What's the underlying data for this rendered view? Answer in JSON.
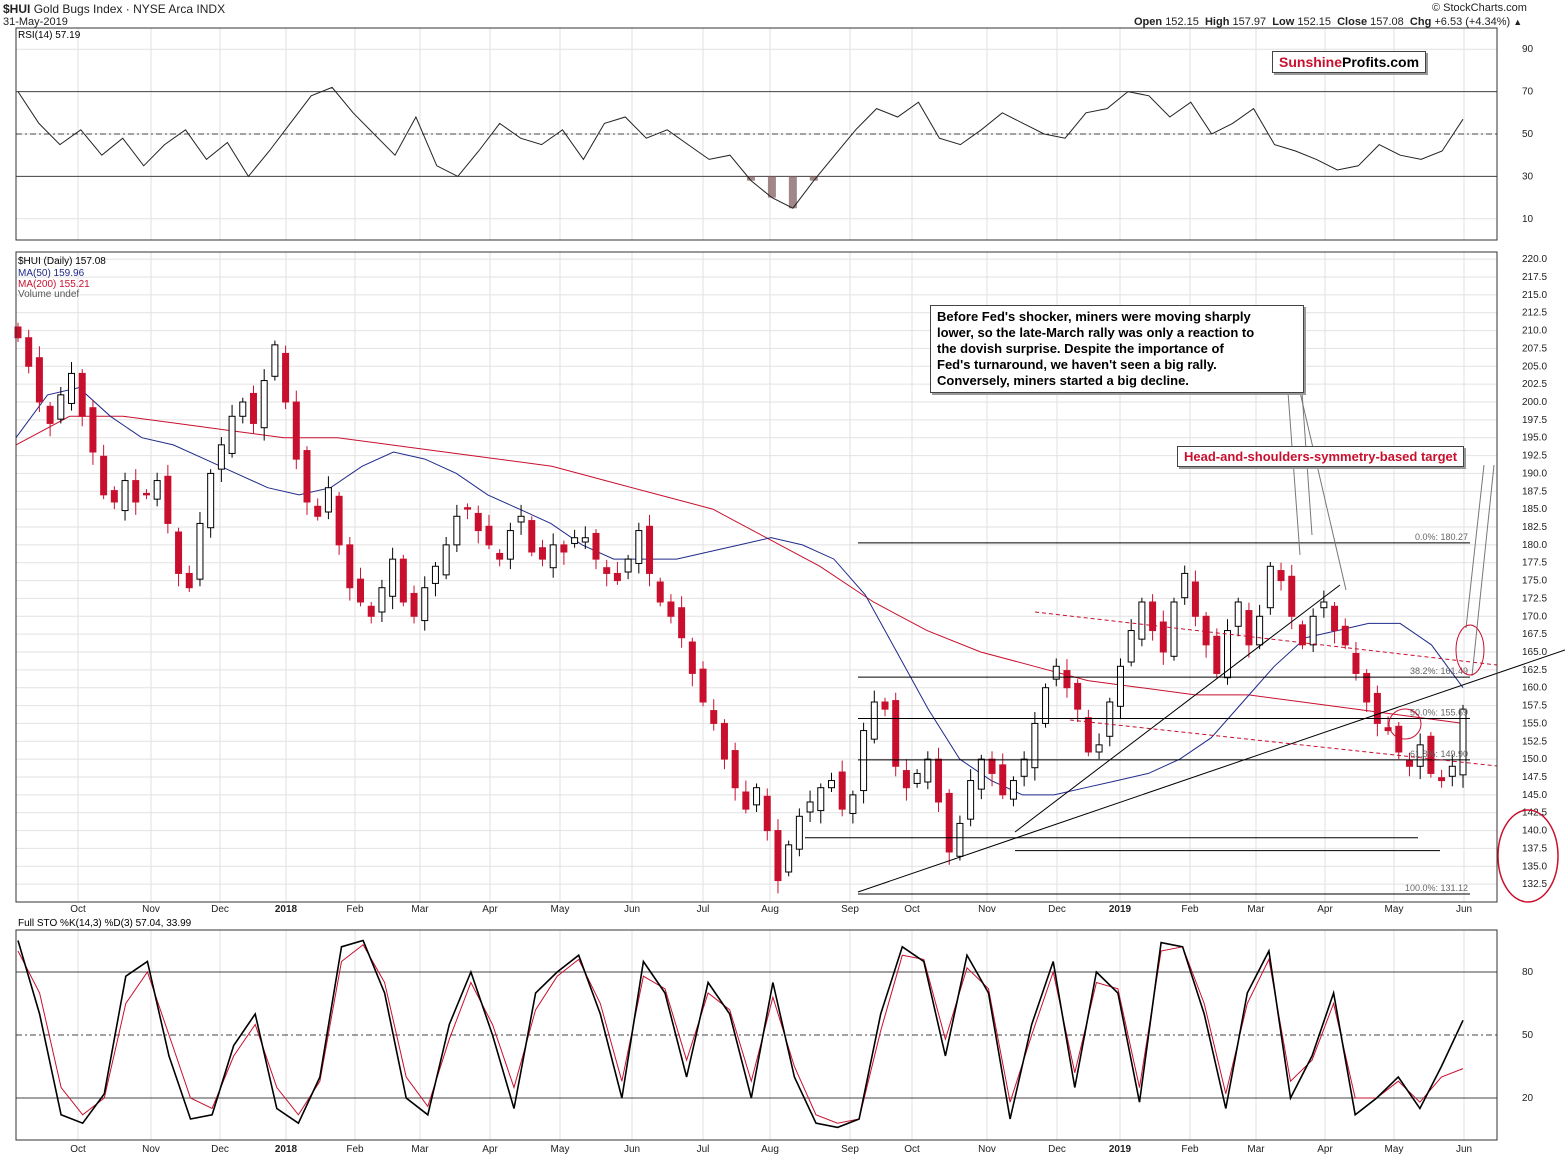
{
  "header": {
    "symbol": "$HUI",
    "name": "Gold Bugs Index · NYSE Arca INDX",
    "date": "31-May-2019",
    "copyright": "© StockCharts.com",
    "open_label": "Open",
    "open": "152.15",
    "high_label": "High",
    "high": "157.97",
    "low_label": "Low",
    "low": "152.15",
    "close_label": "Close",
    "close": "157.08",
    "chg_label": "Chg",
    "chg": "+6.53 (+4.34%)",
    "chg_arrow": "▲"
  },
  "legends": {
    "rsi": "RSI(14) 57.19",
    "price": "$HUI (Daily) 157.08",
    "ma50": "MA(50) 159.96",
    "ma200": "MA(200) 155.21",
    "volume": "Volume undef",
    "sto": "Full STO %K(14,3) %D(3) 57.04, 33.99"
  },
  "logo": {
    "part1": "Sunshine",
    "part2": "Profits.com"
  },
  "annotations": {
    "fed_note": "Before Fed's shocker, miners were moving sharply\nlower, so the late-March rally was only a reaction to\nthe dovish surprise. Despite the importance of\nFed's turnaround, we haven't seen a big rally.\nConversely, miners started a big decline.",
    "hs_target": "Head-and-shoulders-symmetry-based target"
  },
  "colors": {
    "up": "#000000",
    "down": "#c8102e",
    "ma50": "#1f2a8a",
    "ma200": "#c8102e",
    "grid": "#e2e2e2",
    "rsi_fill": "#8a6a6a",
    "annotation": "#c8102e"
  },
  "chart_data": [
    {
      "type": "line",
      "panel": "RSI(14)",
      "ylim": [
        0,
        100
      ],
      "yticks": [
        10,
        30,
        50,
        70,
        90
      ],
      "levels": [
        30,
        50,
        70
      ],
      "x_labels": [
        "Oct",
        "Nov",
        "Dec",
        "2018",
        "Feb",
        "Mar",
        "Apr",
        "May",
        "Jun",
        "Jul",
        "Aug",
        "Sep",
        "Oct",
        "Nov",
        "Dec",
        "2019",
        "Feb",
        "Mar",
        "Apr",
        "May",
        "Jun"
      ],
      "series": [
        {
          "name": "RSI(14)",
          "values": [
            70,
            55,
            45,
            52,
            40,
            48,
            35,
            45,
            52,
            38,
            46,
            30,
            42,
            55,
            68,
            72,
            60,
            50,
            40,
            58,
            35,
            30,
            42,
            55,
            48,
            45,
            52,
            38,
            55,
            58,
            48,
            52,
            45,
            38,
            40,
            28,
            20,
            15,
            28,
            40,
            52,
            62,
            58,
            65,
            48,
            45,
            52,
            60,
            55,
            50,
            48,
            60,
            62,
            70,
            68,
            58,
            65,
            50,
            55,
            62,
            45,
            42,
            38,
            33,
            35,
            45,
            40,
            38,
            42,
            57
          ]
        }
      ],
      "last": 57.19
    },
    {
      "type": "candlestick",
      "panel": "$HUI (Daily)",
      "ylim": [
        130,
        221
      ],
      "yticks": [
        132.5,
        135.0,
        137.5,
        140.0,
        142.5,
        145.0,
        147.5,
        150.0,
        152.5,
        155.0,
        157.5,
        160.0,
        162.5,
        165.0,
        167.5,
        170.0,
        172.5,
        175.0,
        177.5,
        180.0,
        182.5,
        185.0,
        187.5,
        190.0,
        192.5,
        195.0,
        197.5,
        200.0,
        202.5,
        205.0,
        207.5,
        210.0,
        212.5,
        215.0,
        217.5,
        220.0
      ],
      "x_labels": [
        "Oct",
        "Nov",
        "Dec",
        "2018",
        "Feb",
        "Mar",
        "Apr",
        "May",
        "Jun",
        "Jul",
        "Aug",
        "Sep",
        "Oct",
        "Nov",
        "Dec",
        "2019",
        "Feb",
        "Mar",
        "Apr",
        "May",
        "Jun"
      ],
      "close_path": [
        209,
        205,
        200,
        197,
        201,
        204,
        198,
        193,
        187,
        186,
        189,
        186,
        187,
        189,
        183,
        176,
        174,
        183,
        190,
        194,
        198,
        200,
        197,
        203,
        208,
        200,
        192,
        186,
        184,
        188,
        180,
        174,
        172,
        170,
        174,
        178,
        172,
        170,
        174,
        177,
        180,
        184,
        185,
        182,
        180,
        178,
        182,
        184,
        179,
        178,
        180,
        179,
        181,
        181,
        178,
        176,
        175,
        178,
        182,
        176,
        172,
        170,
        167,
        162,
        158,
        155,
        150,
        146,
        143,
        146,
        140,
        133,
        138,
        142,
        144,
        146,
        147,
        143,
        145,
        154,
        158,
        157,
        149,
        146,
        148,
        150,
        144,
        137,
        141,
        147,
        150,
        148,
        145,
        147,
        150,
        155,
        160,
        163,
        160,
        157,
        151,
        152,
        158,
        163,
        168,
        172,
        168,
        165,
        172,
        176,
        170,
        166,
        162,
        168,
        172,
        166,
        170,
        177,
        175,
        170,
        166,
        170,
        172,
        168,
        166,
        162,
        158,
        155,
        154,
        151,
        149,
        152,
        148,
        147,
        149,
        157
      ],
      "ma50": {
        "name": "MA(50)",
        "last": 159.96,
        "values": [
          195,
          201,
          202,
          198,
          195,
          194,
          192,
          190,
          188,
          187,
          188,
          191,
          193,
          192,
          190,
          187,
          185,
          183,
          180,
          178,
          178,
          178,
          179,
          180,
          181,
          180,
          178,
          173,
          165,
          157,
          150,
          147,
          145,
          145,
          146,
          147,
          148,
          150,
          153,
          158,
          163,
          167,
          168,
          169,
          169,
          166,
          160
        ]
      },
      "ma200": {
        "name": "MA(200)",
        "last": 155.21,
        "values": [
          194,
          198,
          198,
          197,
          196,
          195,
          195,
          194,
          193,
          192,
          191,
          189,
          187,
          185,
          181,
          177,
          172,
          168,
          165,
          163,
          161,
          160,
          159,
          159,
          158,
          157,
          156,
          155
        ]
      },
      "fibonacci": [
        {
          "label": "0.0%: 180.27",
          "value": 180.27
        },
        {
          "label": "38.2%: 161.49",
          "value": 161.49
        },
        {
          "label": "50.0%: 155.69",
          "value": 155.69
        },
        {
          "label": "61.8%: 149.90",
          "value": 149.9
        },
        {
          "label": "100.0%: 131.12",
          "value": 131.12
        }
      ],
      "support_lines": [
        139.0,
        137.2
      ],
      "last": 157.08
    },
    {
      "type": "line",
      "panel": "Full STO %K(14,3) %D(3)",
      "ylim": [
        0,
        100
      ],
      "yticks": [
        20,
        50,
        80
      ],
      "levels": [
        20,
        50,
        80
      ],
      "x_labels": [
        "Oct",
        "Nov",
        "Dec",
        "2018",
        "Feb",
        "Mar",
        "Apr",
        "May",
        "Jun",
        "Jul",
        "Aug",
        "Sep",
        "Oct",
        "Nov",
        "Dec",
        "2019",
        "Feb",
        "Mar",
        "Apr",
        "May",
        "Jun"
      ],
      "series": [
        {
          "name": "%K",
          "values": [
            95,
            60,
            12,
            8,
            22,
            78,
            85,
            40,
            10,
            12,
            45,
            60,
            15,
            8,
            30,
            92,
            95,
            70,
            20,
            12,
            55,
            80,
            50,
            15,
            70,
            80,
            88,
            60,
            20,
            85,
            70,
            30,
            75,
            60,
            20,
            75,
            30,
            8,
            6,
            10,
            60,
            92,
            85,
            40,
            88,
            70,
            10,
            55,
            85,
            25,
            80,
            70,
            18,
            94,
            92,
            60,
            15,
            70,
            90,
            20,
            40,
            70,
            12,
            20,
            30,
            15,
            35,
            57
          ]
        },
        {
          "name": "%D",
          "values": [
            90,
            70,
            25,
            12,
            20,
            65,
            80,
            50,
            20,
            15,
            40,
            55,
            25,
            12,
            28,
            85,
            93,
            75,
            30,
            16,
            48,
            75,
            55,
            25,
            62,
            78,
            86,
            65,
            28,
            78,
            72,
            38,
            70,
            62,
            28,
            68,
            35,
            12,
            8,
            10,
            52,
            88,
            86,
            48,
            82,
            72,
            18,
            50,
            80,
            32,
            75,
            72,
            25,
            90,
            92,
            65,
            22,
            65,
            86,
            28,
            38,
            65,
            20,
            20,
            28,
            18,
            30,
            34
          ]
        }
      ],
      "last_k": 57.04,
      "last_d": 33.99
    }
  ]
}
